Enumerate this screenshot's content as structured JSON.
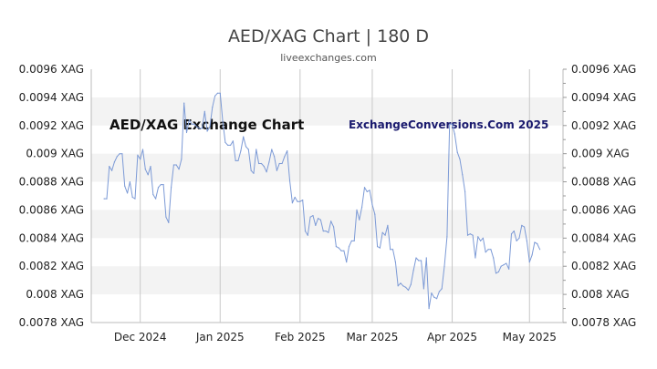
{
  "header": {
    "title": "AED/XAG Chart | 180 D",
    "subtitle": "liveexchanges.com"
  },
  "watermarks": {
    "left": "AED/XAG Exchange Chart",
    "right": "ExchangeConversions.Com 2025"
  },
  "colors": {
    "line": "#7c9ad6",
    "band": "#f3f3f3",
    "axis": "#bbbbbb",
    "tick_text": "#222222",
    "title": "#444444",
    "watermark_right": "#1a1a6e"
  },
  "chart_data": {
    "type": "line",
    "title": "AED/XAG Chart | 180 D",
    "subtitle": "liveexchanges.com",
    "xlabel": "",
    "ylabel": "",
    "ylim": [
      0.0078,
      0.0096
    ],
    "y_ticks": [
      0.0096,
      0.0094,
      0.0092,
      0.009,
      0.0088,
      0.0086,
      0.0084,
      0.0082,
      0.008,
      0.0078
    ],
    "y_tick_labels": [
      "0.0096 XAG",
      "0.0094 XAG",
      "0.0092 XAG",
      "0.009 XAG",
      "0.0088 XAG",
      "0.0086 XAG",
      "0.0084 XAG",
      "0.0082 XAG",
      "0.008 XAG",
      "0.0078 XAG"
    ],
    "x_range": [
      "2024-11-12",
      "2025-05-14"
    ],
    "x_ticks": [
      {
        "date": "2024-12-01",
        "label": "Dec 2024"
      },
      {
        "date": "2025-01-01",
        "label": "Jan 2025"
      },
      {
        "date": "2025-02-01",
        "label": "Feb 2025"
      },
      {
        "date": "2025-03-01",
        "label": "Mar 2025"
      },
      {
        "date": "2025-04-01",
        "label": "Apr 2025"
      },
      {
        "date": "2025-05-01",
        "label": "May 2025"
      }
    ],
    "grid": "alternating horizontal bands",
    "series": [
      {
        "points": [
          [
            "2024-11-17",
            0.00868
          ],
          [
            "2024-11-18",
            0.00868
          ],
          [
            "2024-11-19",
            0.00891
          ],
          [
            "2024-11-20",
            0.00888
          ],
          [
            "2024-11-21",
            0.00894
          ],
          [
            "2024-11-22",
            0.00898
          ],
          [
            "2024-11-23",
            0.009
          ],
          [
            "2024-11-24",
            0.009
          ],
          [
            "2024-11-25",
            0.00877
          ],
          [
            "2024-11-26",
            0.00872
          ],
          [
            "2024-11-27",
            0.0088
          ],
          [
            "2024-11-28",
            0.00869
          ],
          [
            "2024-11-29",
            0.00868
          ],
          [
            "2024-11-30",
            0.00899
          ],
          [
            "2024-12-01",
            0.00896
          ],
          [
            "2024-12-02",
            0.00903
          ],
          [
            "2024-12-03",
            0.00889
          ],
          [
            "2024-12-04",
            0.00885
          ],
          [
            "2024-12-05",
            0.00891
          ],
          [
            "2024-12-06",
            0.00871
          ],
          [
            "2024-12-07",
            0.00868
          ],
          [
            "2024-12-08",
            0.00876
          ],
          [
            "2024-12-09",
            0.00878
          ],
          [
            "2024-12-10",
            0.00878
          ],
          [
            "2024-12-11",
            0.00855
          ],
          [
            "2024-12-12",
            0.00851
          ],
          [
            "2024-12-13",
            0.00876
          ],
          [
            "2024-12-14",
            0.00892
          ],
          [
            "2024-12-15",
            0.00892
          ],
          [
            "2024-12-16",
            0.00889
          ],
          [
            "2024-12-17",
            0.00896
          ],
          [
            "2024-12-18",
            0.00936
          ],
          [
            "2024-12-19",
            0.00915
          ],
          [
            "2024-12-20",
            0.00924
          ],
          [
            "2024-12-21",
            0.00921
          ],
          [
            "2024-12-22",
            0.00921
          ],
          [
            "2024-12-23",
            0.00919
          ],
          [
            "2024-12-24",
            0.00918
          ],
          [
            "2024-12-25",
            0.00918
          ],
          [
            "2024-12-26",
            0.0093
          ],
          [
            "2024-12-27",
            0.00916
          ],
          [
            "2024-12-28",
            0.00919
          ],
          [
            "2024-12-29",
            0.00933
          ],
          [
            "2024-12-30",
            0.00941
          ],
          [
            "2024-12-31",
            0.00943
          ],
          [
            "2025-01-01",
            0.00943
          ],
          [
            "2025-01-02",
            0.00923
          ],
          [
            "2025-01-03",
            0.00908
          ],
          [
            "2025-01-04",
            0.00906
          ],
          [
            "2025-01-05",
            0.00906
          ],
          [
            "2025-01-06",
            0.00909
          ],
          [
            "2025-01-07",
            0.00895
          ],
          [
            "2025-01-08",
            0.00895
          ],
          [
            "2025-01-09",
            0.00902
          ],
          [
            "2025-01-10",
            0.00912
          ],
          [
            "2025-01-11",
            0.00905
          ],
          [
            "2025-01-12",
            0.00903
          ],
          [
            "2025-01-13",
            0.00888
          ],
          [
            "2025-01-14",
            0.00886
          ],
          [
            "2025-01-15",
            0.00903
          ],
          [
            "2025-01-16",
            0.00893
          ],
          [
            "2025-01-17",
            0.00893
          ],
          [
            "2025-01-18",
            0.00891
          ],
          [
            "2025-01-19",
            0.00887
          ],
          [
            "2025-01-20",
            0.00894
          ],
          [
            "2025-01-21",
            0.00903
          ],
          [
            "2025-01-22",
            0.00898
          ],
          [
            "2025-01-23",
            0.00888
          ],
          [
            "2025-01-24",
            0.00893
          ],
          [
            "2025-01-25",
            0.00893
          ],
          [
            "2025-01-26",
            0.00898
          ],
          [
            "2025-01-27",
            0.00902
          ],
          [
            "2025-01-28",
            0.00881
          ],
          [
            "2025-01-29",
            0.00865
          ],
          [
            "2025-01-30",
            0.00869
          ],
          [
            "2025-01-31",
            0.00866
          ],
          [
            "2025-02-01",
            0.00866
          ],
          [
            "2025-02-02",
            0.00867
          ],
          [
            "2025-02-03",
            0.00845
          ],
          [
            "2025-02-04",
            0.00842
          ],
          [
            "2025-02-05",
            0.00855
          ],
          [
            "2025-02-06",
            0.00856
          ],
          [
            "2025-02-07",
            0.00849
          ],
          [
            "2025-02-08",
            0.00854
          ],
          [
            "2025-02-09",
            0.00853
          ],
          [
            "2025-02-10",
            0.00845
          ],
          [
            "2025-02-11",
            0.00845
          ],
          [
            "2025-02-12",
            0.00844
          ],
          [
            "2025-02-13",
            0.00852
          ],
          [
            "2025-02-14",
            0.00848
          ],
          [
            "2025-02-15",
            0.00834
          ],
          [
            "2025-02-16",
            0.00833
          ],
          [
            "2025-02-17",
            0.00831
          ],
          [
            "2025-02-18",
            0.00831
          ],
          [
            "2025-02-19",
            0.00823
          ],
          [
            "2025-02-20",
            0.00834
          ],
          [
            "2025-02-21",
            0.00838
          ],
          [
            "2025-02-22",
            0.00838
          ],
          [
            "2025-02-23",
            0.0086
          ],
          [
            "2025-02-24",
            0.00853
          ],
          [
            "2025-02-25",
            0.00862
          ],
          [
            "2025-02-26",
            0.00876
          ],
          [
            "2025-02-27",
            0.00873
          ],
          [
            "2025-02-28",
            0.00874
          ],
          [
            "2025-03-01",
            0.00864
          ],
          [
            "2025-03-02",
            0.00857
          ],
          [
            "2025-03-03",
            0.00834
          ],
          [
            "2025-03-04",
            0.00833
          ],
          [
            "2025-03-05",
            0.00844
          ],
          [
            "2025-03-06",
            0.00842
          ],
          [
            "2025-03-07",
            0.00849
          ],
          [
            "2025-03-08",
            0.00832
          ],
          [
            "2025-03-09",
            0.00832
          ],
          [
            "2025-03-10",
            0.00823
          ],
          [
            "2025-03-11",
            0.00806
          ],
          [
            "2025-03-12",
            0.00808
          ],
          [
            "2025-03-13",
            0.00806
          ],
          [
            "2025-03-14",
            0.00805
          ],
          [
            "2025-03-15",
            0.00803
          ],
          [
            "2025-03-16",
            0.00807
          ],
          [
            "2025-03-17",
            0.00817
          ],
          [
            "2025-03-18",
            0.00826
          ],
          [
            "2025-03-19",
            0.00824
          ],
          [
            "2025-03-20",
            0.00824
          ],
          [
            "2025-03-21",
            0.00804
          ],
          [
            "2025-03-22",
            0.00826
          ],
          [
            "2025-03-23",
            0.0079
          ],
          [
            "2025-03-24",
            0.00801
          ],
          [
            "2025-03-25",
            0.00798
          ],
          [
            "2025-03-26",
            0.00797
          ],
          [
            "2025-03-27",
            0.00802
          ],
          [
            "2025-03-28",
            0.00804
          ],
          [
            "2025-03-29",
            0.0082
          ],
          [
            "2025-03-30",
            0.00841
          ],
          [
            "2025-03-31",
            0.00921
          ],
          [
            "2025-04-01",
            0.00921
          ],
          [
            "2025-04-02",
            0.00914
          ],
          [
            "2025-04-03",
            0.00901
          ],
          [
            "2025-04-04",
            0.00896
          ],
          [
            "2025-04-05",
            0.00885
          ],
          [
            "2025-04-06",
            0.00873
          ],
          [
            "2025-04-07",
            0.00842
          ],
          [
            "2025-04-08",
            0.00843
          ],
          [
            "2025-04-09",
            0.00842
          ],
          [
            "2025-04-10",
            0.00826
          ],
          [
            "2025-04-11",
            0.00841
          ],
          [
            "2025-04-12",
            0.00838
          ],
          [
            "2025-04-13",
            0.0084
          ],
          [
            "2025-04-14",
            0.0083
          ],
          [
            "2025-04-15",
            0.00832
          ],
          [
            "2025-04-16",
            0.00832
          ],
          [
            "2025-04-17",
            0.00826
          ],
          [
            "2025-04-18",
            0.00815
          ],
          [
            "2025-04-19",
            0.00816
          ],
          [
            "2025-04-20",
            0.0082
          ],
          [
            "2025-04-21",
            0.00821
          ],
          [
            "2025-04-22",
            0.00822
          ],
          [
            "2025-04-23",
            0.00818
          ],
          [
            "2025-04-24",
            0.00843
          ],
          [
            "2025-04-25",
            0.00845
          ],
          [
            "2025-04-26",
            0.00838
          ],
          [
            "2025-04-27",
            0.0084
          ],
          [
            "2025-04-28",
            0.00849
          ],
          [
            "2025-04-29",
            0.00848
          ],
          [
            "2025-04-30",
            0.00838
          ],
          [
            "2025-05-01",
            0.00823
          ],
          [
            "2025-05-02",
            0.00828
          ],
          [
            "2025-05-03",
            0.00837
          ],
          [
            "2025-05-04",
            0.00836
          ],
          [
            "2025-05-05",
            0.00832
          ]
        ]
      }
    ]
  }
}
